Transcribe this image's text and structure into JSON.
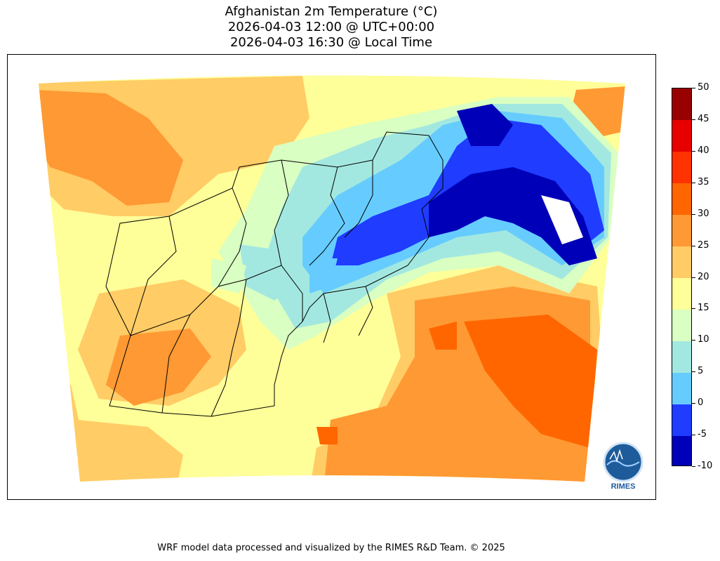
{
  "title": {
    "line1": "Afghanistan 2m Temperature (°C)",
    "line2": "2026-04-03 12:00 @ UTC+00:00",
    "line3": "2026-04-03 16:30 @ Local Time"
  },
  "footer": "WRF model data processed and visualized by the RIMES R&D Team. © 2025",
  "logo": {
    "text": "RIMES",
    "icon": "rimes-logo-icon"
  },
  "colorbar": {
    "min": -10,
    "max": 50,
    "ticks": [
      "-10",
      "-5",
      "0",
      "5",
      "10",
      "15",
      "20",
      "25",
      "30",
      "35",
      "40",
      "45",
      "50"
    ],
    "bins": [
      {
        "from": -10,
        "to": -5,
        "color": "#0000b8"
      },
      {
        "from": -5,
        "to": 0,
        "color": "#1f3cff"
      },
      {
        "from": 0,
        "to": 5,
        "color": "#66ccff"
      },
      {
        "from": 5,
        "to": 10,
        "color": "#a3e8e0"
      },
      {
        "from": 10,
        "to": 15,
        "color": "#d9ffc2"
      },
      {
        "from": 15,
        "to": 20,
        "color": "#ffff99"
      },
      {
        "from": 20,
        "to": 25,
        "color": "#ffcc66"
      },
      {
        "from": 25,
        "to": 30,
        "color": "#ff9933"
      },
      {
        "from": 30,
        "to": 35,
        "color": "#ff6600"
      },
      {
        "from": 35,
        "to": 40,
        "color": "#ff3300"
      },
      {
        "from": 40,
        "to": 45,
        "color": "#e60000"
      },
      {
        "from": 45,
        "to": 50,
        "color": "#990000"
      }
    ]
  }
}
